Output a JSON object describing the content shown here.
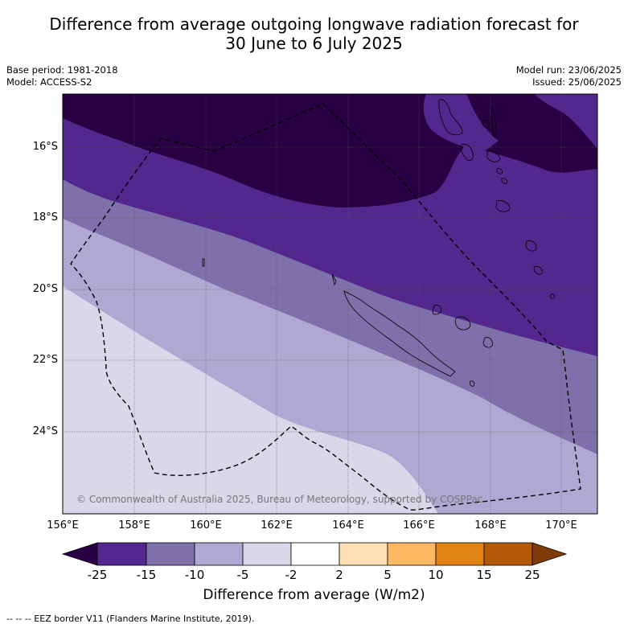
{
  "title_line1": "Difference from average outgoing longwave radiation forecast for",
  "title_line2": "30 June to 6 July 2025",
  "base_period": "Base period: 1981-2018",
  "model": "Model: ACCESS-S2",
  "model_run": "Model run: 23/06/2025",
  "issued": "Issued: 25/06/2025",
  "copyright": "© Commonwealth of Australia 2025, Bureau of Meteorology, supported by COSPPac",
  "lat_labels": [
    "16°S",
    "18°S",
    "20°S",
    "22°S",
    "24°S"
  ],
  "lon_labels": [
    "156°E",
    "158°E",
    "160°E",
    "162°E",
    "164°E",
    "166°E",
    "168°E",
    "170°E"
  ],
  "colorbar": {
    "ticks": [
      "-25",
      "-15",
      "-10",
      "-5",
      "-2",
      "2",
      "5",
      "10",
      "15",
      "25"
    ],
    "colors": [
      "#2a0045",
      "#54278f",
      "#7e70aa",
      "#b0a8d3",
      "#d8d8ea",
      "#ffffff",
      "#fee0b4",
      "#fdb863",
      "#e08214",
      "#b35806",
      "#7f3b08"
    ],
    "label": "Difference from average (W/m2)"
  },
  "legend_footer": "--  --  -- EEZ border V11 (Flanders Marine Institute, 2019)."
}
